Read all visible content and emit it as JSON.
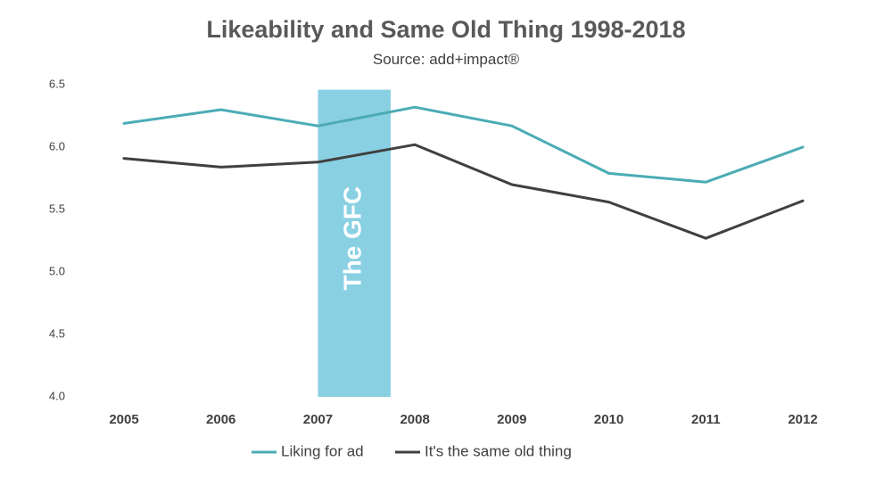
{
  "chart_data": {
    "type": "line",
    "title": "Likeability and Same Old Thing 1998-2018",
    "subtitle": "Source: add+impact®",
    "categories": [
      "2005",
      "2006",
      "2007",
      "2008",
      "2009",
      "2010",
      "2011",
      "2012"
    ],
    "ylim": [
      4.0,
      6.5
    ],
    "yticks": [
      "6.5",
      "6.0",
      "5.5",
      "5.0",
      "4.5",
      "4.0"
    ],
    "grid": false,
    "legend_position": "bottom",
    "series": [
      {
        "name": "Liking for ad",
        "color": "#4bacb5",
        "values": [
          6.19,
          6.3,
          6.17,
          6.32,
          6.17,
          5.79,
          5.72,
          6.0
        ]
      },
      {
        "name": "It's the same old thing",
        "color": "#404040",
        "values": [
          5.91,
          5.84,
          5.88,
          6.02,
          5.7,
          5.56,
          5.27,
          5.57
        ]
      }
    ],
    "annotation": {
      "label": "The GFC",
      "color": "#8ad0e3",
      "start_index": 2,
      "end_index": 2.75
    }
  }
}
